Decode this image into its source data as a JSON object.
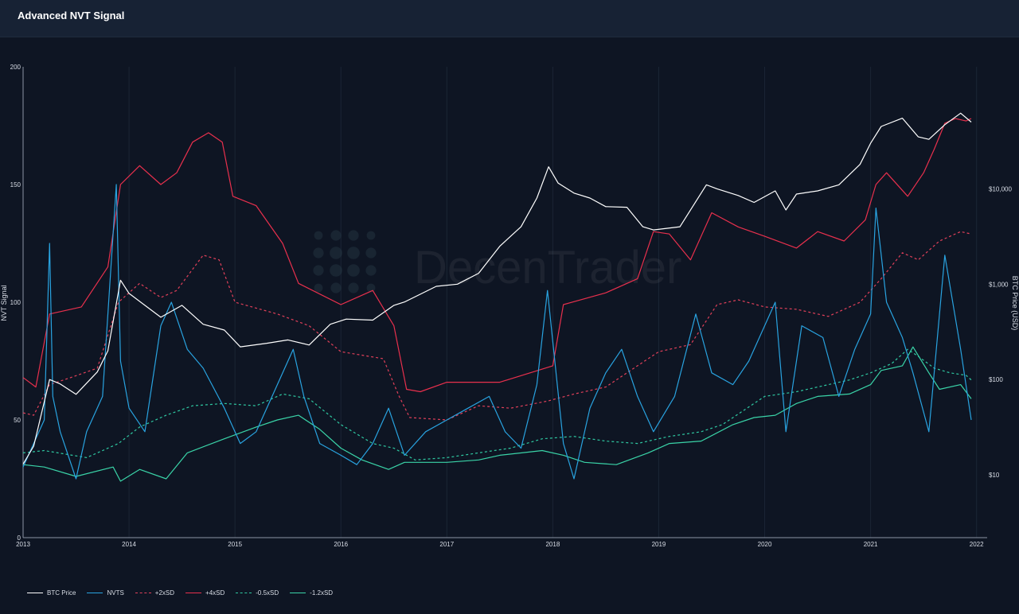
{
  "header": {
    "title": "Advanced NVT Signal"
  },
  "watermark": "DecenTrader",
  "chart_data": {
    "type": "line",
    "title": "Advanced NVT Signal",
    "ylabel": "NVT Signal",
    "y2label": "BTC Price (USD)",
    "y2scale": "log",
    "ylim": [
      0,
      200
    ],
    "y2lim": [
      2.2,
      190000
    ],
    "xlim": [
      2013.0,
      2022.1
    ],
    "x_ticks": [
      "2013",
      "2014",
      "2015",
      "2016",
      "2017",
      "2018",
      "2019",
      "2020",
      "2021",
      "2022"
    ],
    "y_ticks": [
      "0",
      "50",
      "100",
      "150",
      "200"
    ],
    "y2_ticks": [
      "$10",
      "$100",
      "$1,000",
      "$10,000"
    ],
    "y2_tick_values": [
      10,
      100,
      1000,
      10000
    ],
    "grid": "vertical",
    "legend_position": "bottom-left",
    "colors": {
      "btc": "#ffffff",
      "nvts": "#29a3e0",
      "plus2": "#e2405a",
      "plus4": "#e8304d",
      "minus05": "#2fc9a2",
      "minus12": "#3ad4a8"
    },
    "series": [
      {
        "key": "btc",
        "name": "BTC Price",
        "axis": "right",
        "style": "solid",
        "x": [
          2013.0,
          2013.1,
          2013.25,
          2013.35,
          2013.5,
          2013.7,
          2013.8,
          2013.92,
          2014.0,
          2014.15,
          2014.3,
          2014.5,
          2014.7,
          2014.9,
          2015.05,
          2015.3,
          2015.5,
          2015.7,
          2015.9,
          2016.05,
          2016.3,
          2016.5,
          2016.6,
          2016.9,
          2017.1,
          2017.3,
          2017.5,
          2017.7,
          2017.85,
          2017.96,
          2018.05,
          2018.2,
          2018.35,
          2018.5,
          2018.7,
          2018.85,
          2018.95,
          2019.2,
          2019.45,
          2019.55,
          2019.75,
          2019.9,
          2020.1,
          2020.2,
          2020.3,
          2020.5,
          2020.7,
          2020.9,
          2021.0,
          2021.1,
          2021.3,
          2021.45,
          2021.55,
          2021.7,
          2021.85,
          2021.95
        ],
        "values": [
          13,
          20,
          100,
          90,
          70,
          120,
          200,
          1100,
          800,
          600,
          450,
          600,
          380,
          330,
          220,
          240,
          260,
          230,
          380,
          430,
          420,
          600,
          650,
          950,
          1000,
          1300,
          2500,
          4000,
          8000,
          17000,
          11500,
          9000,
          8000,
          6500,
          6400,
          4000,
          3700,
          4000,
          11000,
          10000,
          8500,
          7200,
          9500,
          6000,
          8800,
          9500,
          11000,
          18000,
          30000,
          45000,
          55000,
          35000,
          33000,
          47000,
          62000,
          50000
        ]
      },
      {
        "key": "nvts",
        "name": "NVTS",
        "axis": "left",
        "style": "solid",
        "x": [
          2013.0,
          2013.1,
          2013.2,
          2013.25,
          2013.28,
          2013.35,
          2013.5,
          2013.6,
          2013.75,
          2013.88,
          2013.92,
          2014.0,
          2014.15,
          2014.3,
          2014.4,
          2014.55,
          2014.7,
          2014.9,
          2015.05,
          2015.2,
          2015.4,
          2015.55,
          2015.65,
          2015.8,
          2016.0,
          2016.15,
          2016.3,
          2016.45,
          2016.6,
          2016.8,
          2017.0,
          2017.2,
          2017.4,
          2017.55,
          2017.7,
          2017.85,
          2017.95,
          2018.1,
          2018.2,
          2018.35,
          2018.5,
          2018.65,
          2018.8,
          2018.95,
          2019.15,
          2019.35,
          2019.5,
          2019.7,
          2019.85,
          2020.1,
          2020.2,
          2020.35,
          2020.55,
          2020.7,
          2020.85,
          2021.0,
          2021.05,
          2021.15,
          2021.3,
          2021.4,
          2021.55,
          2021.7,
          2021.85,
          2021.95
        ],
        "values": [
          30,
          40,
          50,
          125,
          60,
          45,
          25,
          45,
          60,
          150,
          75,
          55,
          45,
          90,
          100,
          80,
          72,
          55,
          40,
          45,
          65,
          80,
          60,
          40,
          35,
          31,
          40,
          55,
          35,
          45,
          50,
          55,
          60,
          45,
          38,
          65,
          105,
          40,
          25,
          55,
          70,
          80,
          60,
          45,
          60,
          95,
          70,
          65,
          75,
          100,
          45,
          90,
          85,
          60,
          80,
          95,
          140,
          100,
          85,
          70,
          45,
          120,
          80,
          50
        ]
      },
      {
        "key": "plus2",
        "name": "+2xSD",
        "axis": "left",
        "style": "dashed",
        "x": [
          2013.0,
          2013.1,
          2013.25,
          2013.45,
          2013.7,
          2013.9,
          2014.1,
          2014.3,
          2014.45,
          2014.7,
          2014.85,
          2015.0,
          2015.4,
          2015.7,
          2016.0,
          2016.4,
          2016.55,
          2016.65,
          2017.0,
          2017.3,
          2017.6,
          2017.95,
          2018.2,
          2018.5,
          2018.8,
          2019.0,
          2019.3,
          2019.55,
          2019.75,
          2020.0,
          2020.3,
          2020.6,
          2020.9,
          2021.1,
          2021.3,
          2021.45,
          2021.65,
          2021.85,
          2021.95
        ],
        "values": [
          53,
          52,
          65,
          68,
          72,
          100,
          108,
          102,
          105,
          120,
          118,
          100,
          95,
          90,
          79,
          76,
          60,
          51,
          50,
          56,
          55,
          58,
          61,
          64,
          73,
          79,
          82,
          99,
          101,
          98,
          97,
          94,
          100,
          110,
          121,
          118,
          126,
          130,
          129
        ]
      },
      {
        "key": "plus4",
        "name": "+4xSD",
        "axis": "left",
        "style": "solid",
        "x": [
          2013.0,
          2013.12,
          2013.25,
          2013.55,
          2013.8,
          2013.92,
          2014.1,
          2014.3,
          2014.45,
          2014.6,
          2014.75,
          2014.88,
          2014.98,
          2015.2,
          2015.45,
          2015.6,
          2016.0,
          2016.3,
          2016.5,
          2016.62,
          2016.75,
          2017.0,
          2017.5,
          2018.0,
          2018.1,
          2018.5,
          2018.8,
          2018.95,
          2019.1,
          2019.3,
          2019.5,
          2019.75,
          2020.0,
          2020.3,
          2020.5,
          2020.75,
          2020.95,
          2021.05,
          2021.15,
          2021.35,
          2021.5,
          2021.6,
          2021.7,
          2021.8,
          2021.9,
          2021.95
        ],
        "values": [
          68,
          64,
          95,
          98,
          115,
          150,
          158,
          150,
          155,
          168,
          172,
          168,
          145,
          141,
          125,
          108,
          99,
          105,
          90,
          63,
          62,
          66,
          66,
          73,
          99,
          104,
          110,
          130,
          129,
          118,
          138,
          132,
          128,
          123,
          130,
          126,
          135,
          150,
          155,
          145,
          155,
          165,
          176,
          178,
          177,
          178
        ]
      },
      {
        "key": "minus05",
        "name": "-0.5xSD",
        "axis": "left",
        "style": "dashed",
        "x": [
          2013.0,
          2013.2,
          2013.6,
          2013.9,
          2014.1,
          2014.35,
          2014.6,
          2014.9,
          2015.2,
          2015.45,
          2015.7,
          2016.0,
          2016.3,
          2016.5,
          2016.7,
          2017.0,
          2017.3,
          2017.6,
          2017.9,
          2018.2,
          2018.5,
          2018.8,
          2019.1,
          2019.4,
          2019.6,
          2019.8,
          2020.0,
          2020.3,
          2020.5,
          2020.8,
          2021.0,
          2021.2,
          2021.35,
          2021.45,
          2021.6,
          2021.75,
          2021.9,
          2021.95
        ],
        "values": [
          36,
          37,
          34,
          40,
          47,
          52,
          56,
          57,
          56,
          61,
          59,
          48,
          40,
          38,
          33,
          34,
          36,
          38,
          42,
          43,
          41,
          40,
          43,
          45,
          48,
          54,
          60,
          62,
          64,
          67,
          70,
          74,
          80,
          77,
          72,
          70,
          69,
          67
        ]
      },
      {
        "key": "minus12",
        "name": "-1.2xSD",
        "axis": "left",
        "style": "solid",
        "x": [
          2013.0,
          2013.2,
          2013.5,
          2013.85,
          2013.92,
          2014.1,
          2014.35,
          2014.55,
          2014.9,
          2015.2,
          2015.4,
          2015.6,
          2015.8,
          2016.0,
          2016.2,
          2016.45,
          2016.6,
          2017.0,
          2017.3,
          2017.5,
          2017.9,
          2018.1,
          2018.3,
          2018.6,
          2018.9,
          2019.1,
          2019.4,
          2019.7,
          2019.9,
          2020.1,
          2020.3,
          2020.5,
          2020.8,
          2021.0,
          2021.1,
          2021.3,
          2021.4,
          2021.55,
          2021.65,
          2021.85,
          2021.95
        ],
        "values": [
          31,
          30,
          26,
          30,
          24,
          29,
          25,
          36,
          42,
          47,
          50,
          52,
          46,
          38,
          33,
          29,
          32,
          32,
          33,
          35,
          37,
          35,
          32,
          31,
          36,
          40,
          41,
          48,
          51,
          52,
          57,
          60,
          61,
          65,
          71,
          73,
          81,
          70,
          63,
          65,
          59
        ]
      }
    ]
  }
}
